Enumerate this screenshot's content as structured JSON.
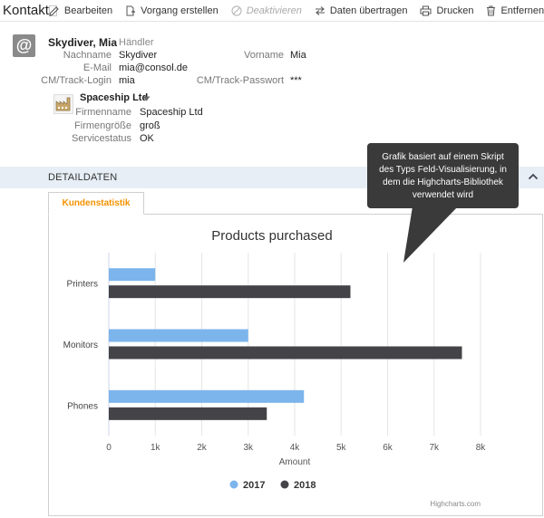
{
  "toolbar": {
    "title": "Kontakt",
    "edit": "Bearbeiten",
    "create_case": "Vorgang erstellen",
    "deactivate": "Deaktivieren",
    "transfer": "Daten übertragen",
    "print": "Drucken",
    "remove": "Entfernen"
  },
  "contact": {
    "avatar_glyph": "@",
    "display_name": "Skydiver, Mia",
    "role": "Händler",
    "lastname_label": "Nachname",
    "lastname": "Skydiver",
    "firstname_label": "Vorname",
    "firstname": "Mia",
    "email_label": "E-Mail",
    "email": "mia@consol.de",
    "login_label": "CM/Track-Login",
    "login": "mia",
    "password_label": "CM/Track-Passwort",
    "password": "***"
  },
  "company": {
    "name": "Spaceship Ltd",
    "firmname_label": "Firmenname",
    "firmname": "Spaceship Ltd",
    "size_label": "Firmengröße",
    "size": "groß",
    "service_label": "Servicestatus",
    "service": "OK"
  },
  "details": {
    "section_title": "DETAILDATEN",
    "tab_label": "Kundenstatistik"
  },
  "tooltip": {
    "line1": "Grafik basiert auf einem Skript",
    "line2": "des Typs Feld-Visualisierung, in",
    "line3": "dem die Highcharts-Bibliothek",
    "line4": "verwendet wird"
  },
  "colors": {
    "series_2017": "#7cb5ec",
    "series_2018": "#434348",
    "accent": "#f39200",
    "section_bg": "#e7eef6"
  },
  "chart_data": {
    "type": "bar",
    "title": "Products purchased",
    "xlabel": "Amount",
    "categories": [
      "Printers",
      "Monitors",
      "Phones"
    ],
    "series": [
      {
        "name": "2017",
        "values": [
          1000,
          3000,
          4200
        ]
      },
      {
        "name": "2018",
        "values": [
          5200,
          7600,
          3400
        ]
      }
    ],
    "xlim": [
      0,
      8000
    ],
    "ticks": [
      "0",
      "1k",
      "2k",
      "3k",
      "4k",
      "5k",
      "6k",
      "7k",
      "8k"
    ],
    "tick_values": [
      0,
      1000,
      2000,
      3000,
      4000,
      5000,
      6000,
      7000,
      8000
    ],
    "grid": true,
    "legend": "bottom-center",
    "credits": "Highcharts.com"
  }
}
